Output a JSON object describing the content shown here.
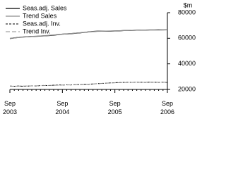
{
  "chart_data": {
    "type": "line",
    "ylabel": "$m",
    "categories": [
      "Sep 2003",
      null,
      null,
      null,
      null,
      null,
      null,
      null,
      null,
      null,
      null,
      null,
      "Sep 2004",
      null,
      null,
      null,
      null,
      null,
      null,
      null,
      null,
      null,
      null,
      null,
      "Sep 2005",
      null,
      null,
      null,
      null,
      null,
      null,
      null,
      null,
      null,
      null,
      null,
      "Sep 2006"
    ],
    "series": [
      {
        "name": "Seas.adj. Sales",
        "color": "#000000",
        "dash": "none",
        "values": [
          59800,
          60300,
          60700,
          61000,
          61200,
          61400,
          61500,
          61700,
          61900,
          62100,
          62400,
          62800,
          63200,
          63400,
          63600,
          63900,
          64200,
          64600,
          65000,
          65300,
          65500,
          65600,
          65500,
          65600,
          65700,
          65800,
          66000,
          66100,
          66200,
          66300,
          66400,
          66400,
          66500,
          66500,
          66600,
          66500,
          66600
        ]
      },
      {
        "name": "Trend Sales",
        "color": "#8c8c8c",
        "dash": "none",
        "values": [
          59900,
          60300,
          60600,
          60900,
          61200,
          61400,
          61600,
          61800,
          62000,
          62300,
          62600,
          62900,
          63200,
          63400,
          63700,
          64000,
          64300,
          64600,
          64900,
          65200,
          65400,
          65500,
          65600,
          65700,
          65800,
          65900,
          66000,
          66100,
          66200,
          66300,
          66400,
          66400,
          66500,
          66500,
          66500,
          66600,
          66600
        ]
      },
      {
        "name": "Seas.adj. Inv.",
        "color": "#000000",
        "dash": "3,2",
        "values": [
          22600,
          22500,
          22700,
          22400,
          22600,
          22800,
          22700,
          23000,
          23100,
          23000,
          23300,
          23500,
          23400,
          23600,
          23500,
          23800,
          23900,
          24100,
          24000,
          24300,
          24500,
          24700,
          24900,
          25100,
          25300,
          25400,
          25500,
          25600,
          25500,
          25700,
          25600,
          25500,
          25700,
          25600,
          25500,
          25700,
          25400
        ]
      },
      {
        "name": "Trend Inv.",
        "color": "#8c8c8c",
        "dash": "6,3",
        "values": [
          22500,
          22550,
          22600,
          22650,
          22700,
          22750,
          22800,
          22900,
          23000,
          23100,
          23200,
          23300,
          23400,
          23500,
          23600,
          23700,
          23850,
          24000,
          24150,
          24300,
          24500,
          24700,
          24900,
          25050,
          25200,
          25300,
          25400,
          25450,
          25500,
          25550,
          25550,
          25600,
          25600,
          25600,
          25600,
          25600,
          25600
        ]
      }
    ],
    "ylim": [
      20000,
      80000
    ],
    "yticks": [
      20000,
      40000,
      60000,
      80000
    ],
    "grid": false,
    "legend": "top-left"
  }
}
